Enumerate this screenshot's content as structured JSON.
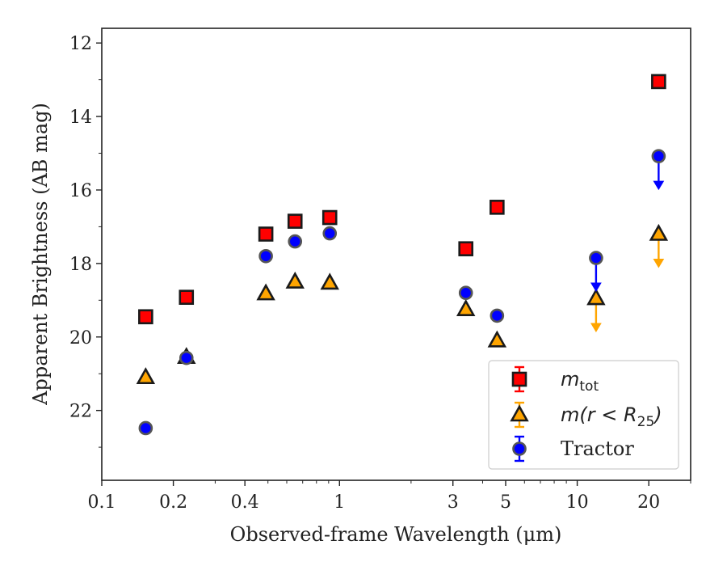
{
  "chart_data": {
    "type": "scatter",
    "xlabel": "Observed-frame Wavelength (μm)",
    "ylabel": "Apparent Brightness (AB mag)",
    "xscale": "log",
    "yaxis_inverted": true,
    "xlim": [
      0.1,
      30
    ],
    "ylim": [
      23.9,
      11.6
    ],
    "x_ticks": [
      {
        "value": 0.1,
        "label": "0.1"
      },
      {
        "value": 0.2,
        "label": "0.2"
      },
      {
        "value": 0.4,
        "label": "0.4"
      },
      {
        "value": 1,
        "label": "1"
      },
      {
        "value": 3,
        "label": "3"
      },
      {
        "value": 5,
        "label": "5"
      },
      {
        "value": 10,
        "label": "10"
      },
      {
        "value": 20,
        "label": "20"
      }
    ],
    "x_minor_ticks": [
      0.3,
      0.5,
      0.6,
      0.7,
      0.8,
      0.9,
      2,
      4,
      6,
      7,
      8,
      9,
      30
    ],
    "y_ticks": [
      {
        "value": 12,
        "label": "12"
      },
      {
        "value": 14,
        "label": "14"
      },
      {
        "value": 16,
        "label": "16"
      },
      {
        "value": 18,
        "label": "18"
      },
      {
        "value": 20,
        "label": "20"
      },
      {
        "value": 22,
        "label": "22"
      }
    ],
    "y_minor_ticks": [
      13,
      15,
      17,
      19,
      21,
      23
    ],
    "grid": false,
    "legend_position": "lower-right",
    "series": [
      {
        "name": "m_tot",
        "label_main": "m",
        "label_sub": "tot",
        "marker": "square",
        "color": "#ff0000",
        "edge_color": "#1a1a1a",
        "points": [
          {
            "x": 0.153,
            "y": 19.45
          },
          {
            "x": 0.227,
            "y": 18.92
          },
          {
            "x": 0.49,
            "y": 17.2
          },
          {
            "x": 0.65,
            "y": 16.85
          },
          {
            "x": 0.91,
            "y": 16.75
          },
          {
            "x": 3.4,
            "y": 17.6
          },
          {
            "x": 4.6,
            "y": 16.47
          },
          {
            "x": 22,
            "y": 13.05
          }
        ]
      },
      {
        "name": "m(r < R25)",
        "label_main": "m(r < R",
        "label_sub": "25",
        "label_end": ")",
        "marker": "triangle",
        "color": "#ffa500",
        "edge_color": "#1a1a1a",
        "points": [
          {
            "x": 0.153,
            "y": 21.1
          },
          {
            "x": 0.227,
            "y": 20.55
          },
          {
            "x": 0.49,
            "y": 18.82
          },
          {
            "x": 0.65,
            "y": 18.5
          },
          {
            "x": 0.91,
            "y": 18.53
          },
          {
            "x": 3.4,
            "y": 19.25
          },
          {
            "x": 4.6,
            "y": 20.1
          },
          {
            "x": 12,
            "y": 18.95,
            "upper_limit": true
          },
          {
            "x": 22,
            "y": 17.2,
            "upper_limit": true
          }
        ]
      },
      {
        "name": "Tractor",
        "label_main": "Tractor",
        "marker": "circle",
        "color": "#0000ff",
        "edge_color": "#555555",
        "points": [
          {
            "x": 0.153,
            "y": 22.48
          },
          {
            "x": 0.227,
            "y": 20.57
          },
          {
            "x": 0.49,
            "y": 17.8
          },
          {
            "x": 0.65,
            "y": 17.4
          },
          {
            "x": 0.91,
            "y": 17.18
          },
          {
            "x": 3.4,
            "y": 18.8
          },
          {
            "x": 4.6,
            "y": 19.42
          },
          {
            "x": 12,
            "y": 17.85,
            "upper_limit": true
          },
          {
            "x": 22,
            "y": 15.08,
            "upper_limit": true
          }
        ]
      }
    ]
  }
}
